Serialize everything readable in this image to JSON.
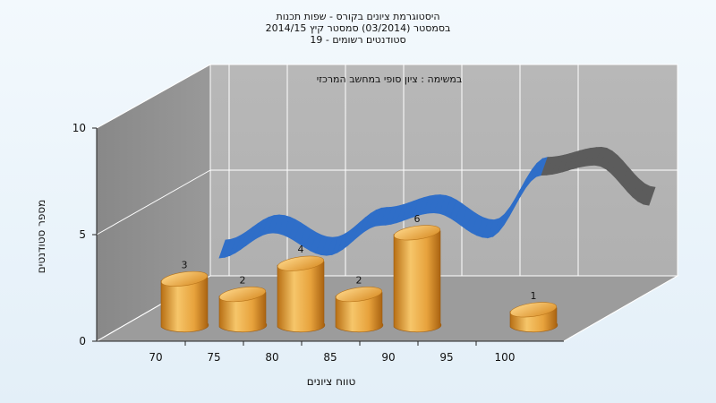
{
  "chart_data": {
    "type": "bar",
    "title_lines": [
      "היסטוגרמת ציונים בקורס - שפות תכנות",
      "בסמסטר (03/2014) סמסטר קיץ 2014/15",
      "סטודנטים רשומים - 19"
    ],
    "subtitle": "במשימה : ציון סופי במחשב המרכזי",
    "xlabel": "טווח ציונים",
    "ylabel": "מספר סטודנטים",
    "categories": [
      "70",
      "75",
      "80",
      "85",
      "90",
      "95",
      "100"
    ],
    "yticks": [
      "0",
      "5",
      "10"
    ],
    "ylim": [
      0,
      10
    ],
    "grid": true,
    "series": [
      {
        "values": [
          3,
          2,
          4,
          2,
          6,
          null,
          1
        ],
        "color": "#e8a53a"
      }
    ],
    "curve": {
      "x": [
        70,
        75,
        80,
        85,
        90,
        95,
        100,
        105,
        110
      ],
      "y": [
        4.5,
        5.5,
        4.6,
        5.8,
        6.3,
        5.3,
        7.8,
        8.2,
        6.6
      ],
      "colors": [
        "#2f6ec8",
        "#5c5c5c"
      ]
    }
  }
}
